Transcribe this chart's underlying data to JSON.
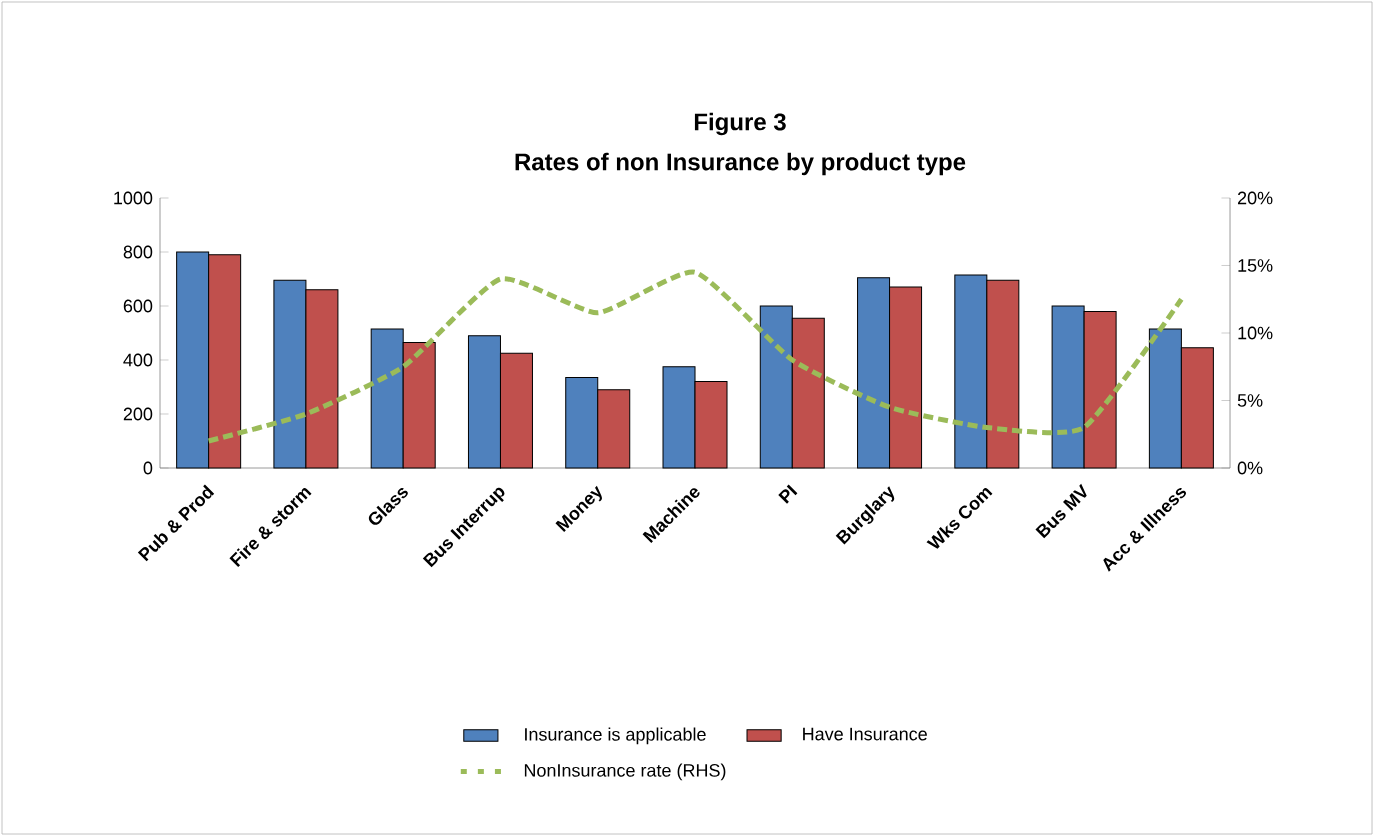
{
  "chart_data": {
    "type": "bar",
    "title": "Figure 3",
    "subtitle": "Rates of non Insurance by product type",
    "categories": [
      "Pub & Prod",
      "Fire & storm",
      "Glass",
      "Bus Interrup",
      "Money",
      "Machine",
      "PI",
      "Burglary",
      "Wks Com",
      "Bus MV",
      "Acc & Illness"
    ],
    "series": [
      {
        "name": "Insurance is applicable",
        "color": "#4f81bd",
        "values": [
          800,
          695,
          515,
          490,
          335,
          375,
          600,
          705,
          715,
          600,
          515
        ]
      },
      {
        "name": "Have Insurance",
        "color": "#c0504d",
        "values": [
          790,
          660,
          465,
          425,
          290,
          320,
          555,
          670,
          695,
          580,
          445
        ]
      },
      {
        "name": "NonInsurance rate (RHS)",
        "type": "line",
        "axis": "y2",
        "color": "#9bbb59",
        "line_style": "dashed",
        "values": [
          2,
          4,
          7.5,
          14,
          11.5,
          14.5,
          8,
          4.5,
          3,
          3,
          12.5
        ]
      }
    ],
    "ylim": [
      0,
      1000
    ],
    "yticks": [
      0,
      200,
      400,
      600,
      800,
      1000
    ],
    "y2lim": [
      0,
      20
    ],
    "y2ticks": [
      {
        "value": 0,
        "label": "0%"
      },
      {
        "value": 5,
        "label": "5%"
      },
      {
        "value": 10,
        "label": "10%"
      },
      {
        "value": 15,
        "label": "15%"
      },
      {
        "value": 20,
        "label": "20%"
      }
    ],
    "legend": "bottom",
    "grid": false,
    "marker": "none"
  }
}
